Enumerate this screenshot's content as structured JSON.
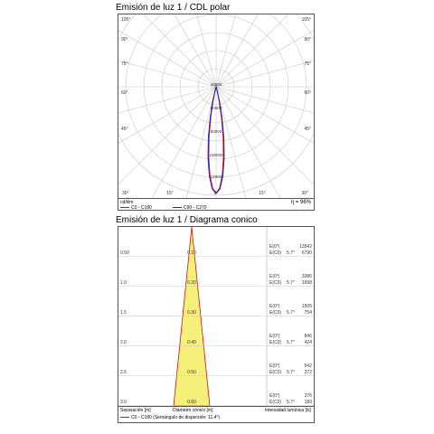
{
  "polar": {
    "title": "Emisión de luz 1 / CDL polar",
    "angle_labels_left": [
      "105°",
      "90°",
      "75°",
      "60°",
      "45°"
    ],
    "angle_labels_right": [
      "105°",
      "90°",
      "75°",
      "60°",
      "45°"
    ],
    "bottom_labels": [
      "30°",
      "15°",
      "0°",
      "15°",
      "30°"
    ],
    "radial_labels": [
      "40000",
      "60000",
      "80000",
      "100000",
      "12000"
    ],
    "unit": "cd/klm",
    "efficiency": "η = 96%",
    "legend": [
      {
        "label": "C0 - C180",
        "color": "#d01010"
      },
      {
        "label": "C90 - C270",
        "color": "#2020c0"
      }
    ]
  },
  "cone": {
    "title": "Emisión de luz 1 / Diagrama conico",
    "footer_left": "Separación [m]",
    "footer_mid": "Diámetro cónico [m]",
    "footer_right": "Intensidad lumínica [lx]",
    "footer_legend": "C0 - C180 (Semángulo de dispersión: 11.4°)",
    "legend_color": "#d01010",
    "fill_color": "#f5f07a",
    "rows": [
      {
        "sep": "0.50",
        "diam": "0.10",
        "e0": "E(0°)",
        "ec": "E(C0)",
        "angle": "5.7°",
        "v1": "13542",
        "v2": "6790"
      },
      {
        "sep": "1.0",
        "diam": "0.20",
        "e0": "E(0°)",
        "ec": "E(C0)",
        "angle": "5.7°",
        "v1": "3386",
        "v2": "1698"
      },
      {
        "sep": "1.5",
        "diam": "0.30",
        "e0": "E(0°)",
        "ec": "E(C0)",
        "angle": "5.7°",
        "v1": "1505",
        "v2": "754"
      },
      {
        "sep": "2.0",
        "diam": "0.40",
        "e0": "E(0°)",
        "ec": "E(C0)",
        "angle": "5.7°",
        "v1": "846",
        "v2": "424"
      },
      {
        "sep": "2.5",
        "diam": "0.50",
        "e0": "E(0°)",
        "ec": "E(C0)",
        "angle": "5.7°",
        "v1": "542",
        "v2": "272"
      },
      {
        "sep": "3.0",
        "diam": "0.60",
        "e0": "E(0°)",
        "ec": "E(C0)",
        "angle": "5.7°",
        "v1": "376",
        "v2": "189"
      }
    ]
  },
  "chart_data": [
    {
      "type": "polar",
      "title": "Emisión de luz 1 / CDL polar",
      "unit": "cd/klm",
      "radial_ticks": [
        40000,
        60000,
        80000,
        100000,
        12000
      ],
      "series": [
        {
          "name": "C0 - C180",
          "color": "#d01010",
          "angles_deg": [
            0,
            2,
            4,
            6,
            8,
            10,
            12,
            14,
            15
          ],
          "values": [
            118000,
            112000,
            98000,
            78000,
            56000,
            34000,
            16000,
            5000,
            0
          ]
        },
        {
          "name": "C90 - C270",
          "color": "#2020c0",
          "angles_deg": [
            0,
            2,
            4,
            6,
            8,
            10,
            12,
            14,
            15
          ],
          "values": [
            118000,
            113000,
            99000,
            79000,
            57000,
            35000,
            17000,
            5000,
            0
          ]
        }
      ]
    },
    {
      "type": "table",
      "title": "Emisión de luz 1 / Diagrama conico",
      "half_angle_deg": 11.4,
      "separation_m": [
        0.5,
        1.0,
        1.5,
        2.0,
        2.5,
        3.0
      ],
      "diameter_m": [
        0.1,
        0.2,
        0.3,
        0.4,
        0.5,
        0.6
      ],
      "E0_lx": [
        13542,
        3386,
        1505,
        846,
        542,
        376
      ],
      "EC0_lx": [
        6790,
        1698,
        754,
        424,
        272,
        189
      ]
    }
  ]
}
